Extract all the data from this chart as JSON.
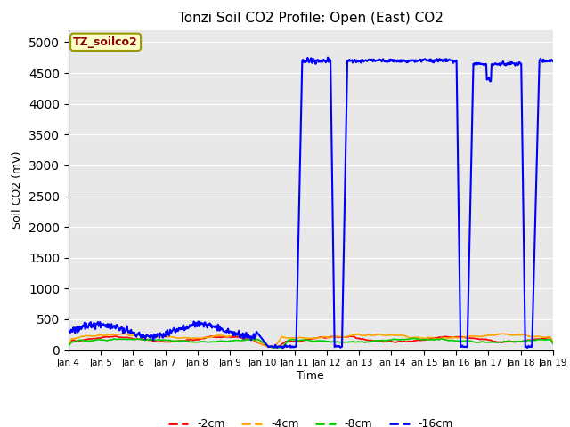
{
  "title": "Tonzi Soil CO2 Profile: Open (East) CO2",
  "ylabel": "Soil CO2 (mV)",
  "xlabel": "Time",
  "label_box_text": "TZ_soilco2",
  "background_color": "#ffffff",
  "plot_bg_color": "#e8e8e8",
  "ylim": [
    0,
    5200
  ],
  "yticks": [
    0,
    500,
    1000,
    1500,
    2000,
    2500,
    3000,
    3500,
    4000,
    4500,
    5000
  ],
  "colors": {
    "-2cm": "#ff0000",
    "-4cm": "#ffa500",
    "-8cm": "#00cc00",
    "-16cm": "#0000ff"
  },
  "line_width": 1.2,
  "legend_entries": [
    "-2cm",
    "-4cm",
    "-8cm",
    "-16cm"
  ]
}
